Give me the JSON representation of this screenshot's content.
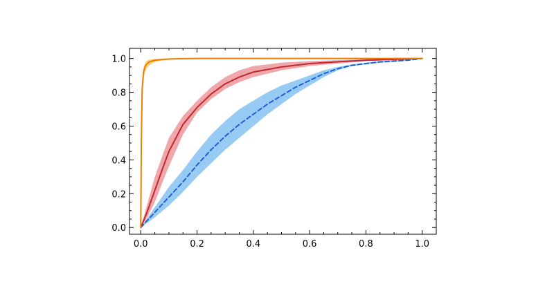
{
  "chart_data": {
    "type": "line",
    "title": "",
    "xlabel": "",
    "ylabel": "",
    "xlim": [
      -0.04,
      1.05
    ],
    "ylim": [
      -0.04,
      1.06
    ],
    "grid": false,
    "x_ticks": [
      0.0,
      0.2,
      0.4,
      0.6,
      0.8,
      1.0
    ],
    "y_ticks": [
      0.0,
      0.2,
      0.4,
      0.6,
      0.8,
      1.0
    ],
    "x_tick_labels": [
      "0.0",
      "0.2",
      "0.4",
      "0.6",
      "0.8",
      "1.0"
    ],
    "y_tick_labels": [
      "0.0",
      "0.2",
      "0.4",
      "0.6",
      "0.8",
      "1.0"
    ],
    "series": [
      {
        "color": "#1f5fd6",
        "band_color": "#74b9f0",
        "style": "dashed",
        "x": [
          0.0,
          0.05,
          0.1,
          0.15,
          0.2,
          0.25,
          0.3,
          0.35,
          0.4,
          0.45,
          0.5,
          0.55,
          0.6,
          0.65,
          0.7,
          0.75,
          0.8,
          0.85,
          0.9,
          0.95,
          1.0
        ],
        "y": [
          0.0,
          0.09,
          0.18,
          0.27,
          0.37,
          0.46,
          0.54,
          0.61,
          0.67,
          0.73,
          0.78,
          0.83,
          0.87,
          0.91,
          0.94,
          0.96,
          0.97,
          0.98,
          0.985,
          0.99,
          1.0
        ],
        "lower": [
          0.0,
          0.06,
          0.13,
          0.21,
          0.3,
          0.38,
          0.46,
          0.53,
          0.6,
          0.67,
          0.73,
          0.79,
          0.84,
          0.89,
          0.93,
          0.955,
          0.965,
          0.975,
          0.98,
          0.99,
          1.0
        ],
        "upper": [
          0.0,
          0.12,
          0.24,
          0.34,
          0.45,
          0.55,
          0.63,
          0.7,
          0.75,
          0.8,
          0.84,
          0.87,
          0.9,
          0.93,
          0.95,
          0.965,
          0.975,
          0.985,
          0.99,
          0.995,
          1.0
        ]
      },
      {
        "color": "#c0282d",
        "band_color": "#ea8a90",
        "style": "solid",
        "x": [
          0.0,
          0.02,
          0.05,
          0.08,
          0.1,
          0.15,
          0.2,
          0.25,
          0.3,
          0.35,
          0.4,
          0.5,
          0.6,
          0.7,
          0.8,
          0.9,
          1.0
        ],
        "y": [
          0.0,
          0.08,
          0.22,
          0.36,
          0.45,
          0.61,
          0.71,
          0.79,
          0.85,
          0.89,
          0.92,
          0.95,
          0.97,
          0.98,
          0.99,
          0.995,
          1.0
        ],
        "lower": [
          0.0,
          0.05,
          0.15,
          0.28,
          0.36,
          0.55,
          0.68,
          0.76,
          0.82,
          0.86,
          0.89,
          0.93,
          0.955,
          0.97,
          0.985,
          0.99,
          1.0
        ],
        "upper": [
          0.0,
          0.12,
          0.3,
          0.44,
          0.53,
          0.66,
          0.75,
          0.83,
          0.89,
          0.93,
          0.955,
          0.975,
          0.985,
          0.99,
          0.995,
          0.998,
          1.0
        ]
      },
      {
        "color": "#f07d00",
        "band_color": "#f7c04a",
        "style": "solid",
        "x": [
          0.0,
          0.002,
          0.005,
          0.01,
          0.015,
          0.02,
          0.03,
          0.05,
          0.08,
          0.12,
          0.2,
          0.3,
          0.5,
          0.7,
          1.0
        ],
        "y": [
          0.0,
          0.5,
          0.82,
          0.92,
          0.95,
          0.965,
          0.98,
          0.99,
          0.995,
          0.998,
          1.0,
          1.0,
          1.0,
          1.0,
          1.0
        ],
        "lower": [
          0.0,
          0.4,
          0.74,
          0.88,
          0.92,
          0.94,
          0.96,
          0.98,
          0.99,
          0.995,
          0.998,
          0.999,
          1.0,
          1.0,
          1.0
        ],
        "upper": [
          0.0,
          0.6,
          0.88,
          0.95,
          0.97,
          0.985,
          0.993,
          0.997,
          0.999,
          1.0,
          1.0,
          1.0,
          1.0,
          1.0,
          1.0
        ]
      }
    ]
  }
}
